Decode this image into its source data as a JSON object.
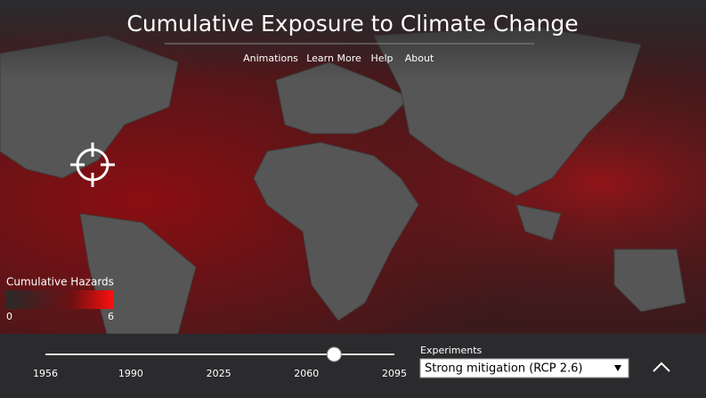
{
  "header": {
    "title": "Cumulative Exposure to Climate Change",
    "nav": [
      "Animations",
      "Learn More",
      "Help",
      "About"
    ]
  },
  "legend": {
    "title": "Cumulative Hazards",
    "min": 0,
    "max": 6
  },
  "slider": {
    "range": [
      1956,
      2095
    ],
    "ticks": [
      1956,
      1990,
      2025,
      2060,
      2095
    ],
    "value": 2071
  },
  "experiments": {
    "label": "Experiments",
    "selected": "Strong mitigation (RCP 2.6)"
  }
}
